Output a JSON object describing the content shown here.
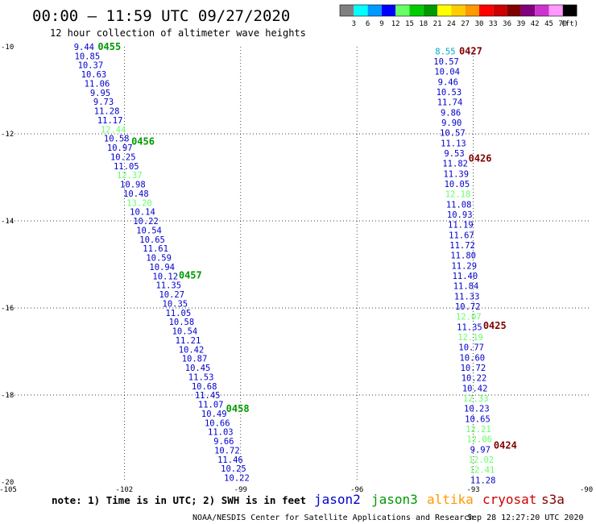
{
  "title": "00:00 – 11:59 UTC 09/27/2020",
  "subtitle": "12 hour collection of altimeter wave heights",
  "note": "note: 1) Time is in UTC; 2) SWH is in feet",
  "credit": "NOAA/NESDIS Center for Satellite Applications and Research",
  "timestamp": "Sep 28 12:27:20 UTC 2020",
  "legend": {
    "unit": "(ft)",
    "labels": [
      "3",
      "6",
      "9",
      "12",
      "15",
      "18",
      "21",
      "24",
      "27",
      "30",
      "33",
      "36",
      "39",
      "42",
      "45",
      "70"
    ],
    "colors": [
      "#808080",
      "#00ffff",
      "#0099ff",
      "#0000ff",
      "#66ff66",
      "#00cc00",
      "#009900",
      "#ffff00",
      "#ffcc00",
      "#ff9900",
      "#ff0000",
      "#cc0000",
      "#800000",
      "#800080",
      "#cc33cc",
      "#ff99ff",
      "#000000"
    ]
  },
  "satellites": [
    {
      "name": "jason2",
      "color": "#0000cc"
    },
    {
      "name": "jason3",
      "color": "#009900"
    },
    {
      "name": "altika",
      "color": "#ff9900"
    },
    {
      "name": "cryosat",
      "color": "#cc0000"
    },
    {
      "name": "s3a",
      "color": "#800000"
    }
  ],
  "chart_data": {
    "type": "scatter",
    "xlim": [
      -105,
      -90
    ],
    "ylim": [
      -20,
      -10
    ],
    "xticks": [
      "-105",
      "-102",
      "-99",
      "-96",
      "-93",
      "-90"
    ],
    "yticks": [
      "-10",
      "-12",
      "-14",
      "-16",
      "-18",
      "-20"
    ],
    "grid": "dotted",
    "tracks": [
      {
        "start": [
          -103.04,
          -10.0
        ],
        "end": [
          -99.1,
          -19.9
        ],
        "passes": [
          {
            "label": "0455",
            "t": 0.0,
            "color": "#009900"
          },
          {
            "label": "0456",
            "t": 0.22,
            "color": "#009900"
          },
          {
            "label": "0457",
            "t": 0.53,
            "color": "#009900"
          },
          {
            "label": "0458",
            "t": 0.84,
            "color": "#009900"
          }
        ],
        "points": [
          {
            "v": "9.44",
            "c": "#0000cc"
          },
          {
            "v": "10.85",
            "c": "#0000cc"
          },
          {
            "v": "10.37",
            "c": "#0000cc"
          },
          {
            "v": "10.63",
            "c": "#0000cc"
          },
          {
            "v": "11.06",
            "c": "#0000cc"
          },
          {
            "v": "9.95",
            "c": "#0000cc"
          },
          {
            "v": "9.73",
            "c": "#0000cc"
          },
          {
            "v": "11.28",
            "c": "#0000cc"
          },
          {
            "v": "11.17",
            "c": "#0000cc"
          },
          {
            "v": "12.44",
            "c": "#66ff66"
          },
          {
            "v": "10.58",
            "c": "#0000cc"
          },
          {
            "v": "10.97",
            "c": "#0000cc"
          },
          {
            "v": "10.25",
            "c": "#0000cc"
          },
          {
            "v": "11.05",
            "c": "#0000cc"
          },
          {
            "v": "12.37",
            "c": "#66ff66"
          },
          {
            "v": "10.98",
            "c": "#0000cc"
          },
          {
            "v": "10.48",
            "c": "#0000cc"
          },
          {
            "v": "13.20",
            "c": "#66ff66"
          },
          {
            "v": "10.14",
            "c": "#0000cc"
          },
          {
            "v": "10.22",
            "c": "#0000cc"
          },
          {
            "v": "10.54",
            "c": "#0000cc"
          },
          {
            "v": "10.65",
            "c": "#0000cc"
          },
          {
            "v": "11.61",
            "c": "#0000cc"
          },
          {
            "v": "10.59",
            "c": "#0000cc"
          },
          {
            "v": "10.94",
            "c": "#0000cc"
          },
          {
            "v": "10.12",
            "c": "#0000cc"
          },
          {
            "v": "11.35",
            "c": "#0000cc"
          },
          {
            "v": "10.27",
            "c": "#0000cc"
          },
          {
            "v": "10.35",
            "c": "#0000cc"
          },
          {
            "v": "11.05",
            "c": "#0000cc"
          },
          {
            "v": "10.58",
            "c": "#0000cc"
          },
          {
            "v": "10.54",
            "c": "#0000cc"
          },
          {
            "v": "11.21",
            "c": "#0000cc"
          },
          {
            "v": "10.42",
            "c": "#0000cc"
          },
          {
            "v": "10.87",
            "c": "#0000cc"
          },
          {
            "v": "10.45",
            "c": "#0000cc"
          },
          {
            "v": "11.53",
            "c": "#0000cc"
          },
          {
            "v": "10.68",
            "c": "#0000cc"
          },
          {
            "v": "11.45",
            "c": "#0000cc"
          },
          {
            "v": "11.07",
            "c": "#0000cc"
          },
          {
            "v": "10.49",
            "c": "#0000cc"
          },
          {
            "v": "10.66",
            "c": "#0000cc"
          },
          {
            "v": "11.03",
            "c": "#0000cc"
          },
          {
            "v": "9.66",
            "c": "#0000cc"
          },
          {
            "v": "10.72",
            "c": "#0000cc"
          },
          {
            "v": "11.46",
            "c": "#0000cc"
          },
          {
            "v": "10.25",
            "c": "#0000cc"
          },
          {
            "v": "10.22",
            "c": "#0000cc"
          }
        ]
      },
      {
        "start": [
          -93.72,
          -10.1
        ],
        "end": [
          -92.75,
          -19.95
        ],
        "passes": [
          {
            "label": "0427",
            "t": 0.0,
            "color": "#800000"
          },
          {
            "label": "0426",
            "t": 0.25,
            "color": "#800000"
          },
          {
            "label": "0425",
            "t": 0.64,
            "color": "#800000"
          },
          {
            "label": "0424",
            "t": 0.92,
            "color": "#800000"
          }
        ],
        "points": [
          {
            "v": "8.55",
            "c": "#00aacc"
          },
          {
            "v": "10.57",
            "c": "#0000cc"
          },
          {
            "v": "10.04",
            "c": "#0000cc"
          },
          {
            "v": "9.46",
            "c": "#0000cc"
          },
          {
            "v": "10.53",
            "c": "#0000cc"
          },
          {
            "v": "11.74",
            "c": "#0000cc"
          },
          {
            "v": "9.86",
            "c": "#0000cc"
          },
          {
            "v": "9.90",
            "c": "#0000cc"
          },
          {
            "v": "10.57",
            "c": "#0000cc"
          },
          {
            "v": "11.13",
            "c": "#0000cc"
          },
          {
            "v": "9.53",
            "c": "#0000cc"
          },
          {
            "v": "11.82",
            "c": "#0000cc"
          },
          {
            "v": "11.39",
            "c": "#0000cc"
          },
          {
            "v": "10.05",
            "c": "#0000cc"
          },
          {
            "v": "12.18",
            "c": "#66ff66"
          },
          {
            "v": "11.08",
            "c": "#0000cc"
          },
          {
            "v": "10.93",
            "c": "#0000cc"
          },
          {
            "v": "11.19",
            "c": "#0000cc"
          },
          {
            "v": "11.67",
            "c": "#0000cc"
          },
          {
            "v": "11.72",
            "c": "#0000cc"
          },
          {
            "v": "11.80",
            "c": "#0000cc"
          },
          {
            "v": "11.29",
            "c": "#0000cc"
          },
          {
            "v": "11.40",
            "c": "#0000cc"
          },
          {
            "v": "11.84",
            "c": "#0000cc"
          },
          {
            "v": "11.33",
            "c": "#0000cc"
          },
          {
            "v": "10.72",
            "c": "#0000cc"
          },
          {
            "v": "12.07",
            "c": "#66ff66"
          },
          {
            "v": "11.35",
            "c": "#0000cc"
          },
          {
            "v": "12.19",
            "c": "#66ff66"
          },
          {
            "v": "10.77",
            "c": "#0000cc"
          },
          {
            "v": "10.60",
            "c": "#0000cc"
          },
          {
            "v": "10.72",
            "c": "#0000cc"
          },
          {
            "v": "10.22",
            "c": "#0000cc"
          },
          {
            "v": "10.42",
            "c": "#0000cc"
          },
          {
            "v": "12.33",
            "c": "#66ff66"
          },
          {
            "v": "10.23",
            "c": "#0000cc"
          },
          {
            "v": "10.65",
            "c": "#0000cc"
          },
          {
            "v": "12.21",
            "c": "#66ff66"
          },
          {
            "v": "12.06",
            "c": "#66ff66"
          },
          {
            "v": "9.97",
            "c": "#0000cc"
          },
          {
            "v": "12.02",
            "c": "#66ff66"
          },
          {
            "v": "12.41",
            "c": "#66ff66"
          },
          {
            "v": "11.28",
            "c": "#0000cc"
          }
        ]
      }
    ]
  }
}
